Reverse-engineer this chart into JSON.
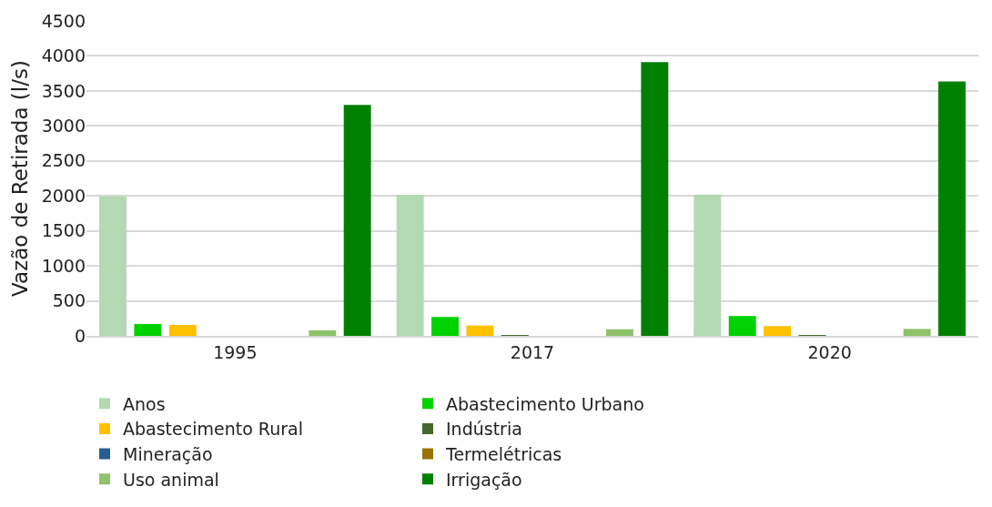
{
  "chart_data": {
    "type": "bar",
    "ylabel": "Vazão de Retirada (l/s)",
    "categories": [
      "1995",
      "2017",
      "2020"
    ],
    "series": [
      {
        "name": "Anos",
        "color": "#b3d9b3",
        "values": [
          1995,
          2017,
          2020
        ]
      },
      {
        "name": "Abastecimento Urbano",
        "color": "#00d100",
        "values": [
          170,
          270,
          284
        ]
      },
      {
        "name": "Abastecimento Rural",
        "color": "#ffc000",
        "values": [
          157,
          148,
          140
        ]
      },
      {
        "name": "Indústria",
        "color": "#43682b",
        "values": [
          0,
          10,
          10
        ]
      },
      {
        "name": "Mineração",
        "color": "#255e91",
        "values": [
          0,
          0,
          0
        ]
      },
      {
        "name": "Termelétricas",
        "color": "#997300",
        "values": [
          0,
          0,
          0
        ]
      },
      {
        "name": "Uso animal",
        "color": "#8fc26a",
        "values": [
          80,
          95,
          100
        ]
      },
      {
        "name": "Irrigação",
        "color": "#008000",
        "values": [
          3300,
          3910,
          3634
        ]
      }
    ],
    "ylim": [
      0,
      4500
    ],
    "yticks": [
      0,
      500,
      1000,
      1500,
      2000,
      2500,
      3000,
      3500,
      4000,
      4500
    ],
    "grid": "y",
    "legend": "bottom"
  }
}
